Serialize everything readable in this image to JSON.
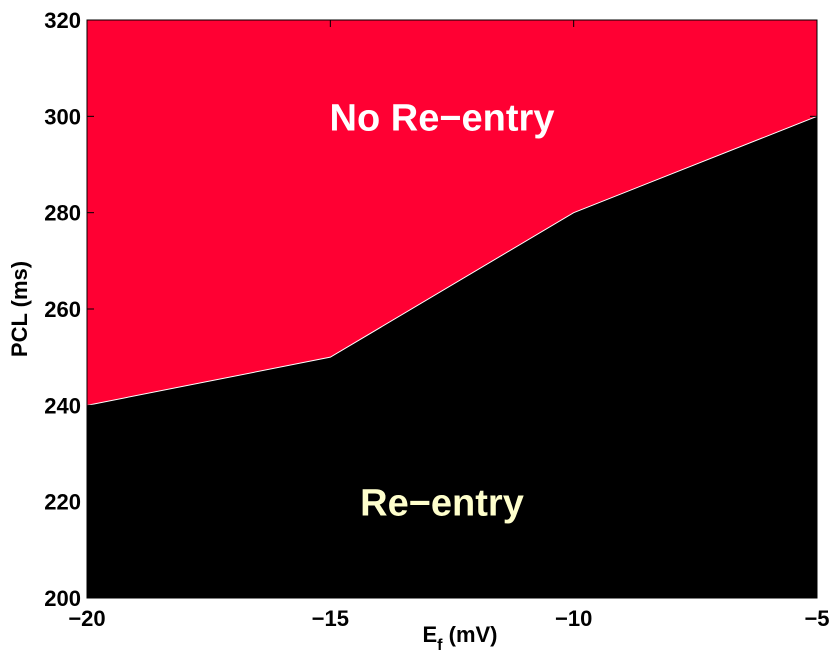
{
  "chart_data": {
    "type": "area",
    "title": "",
    "xlabel": "E",
    "xlabel_sub": "f",
    "xlabel_unit": " (mV)",
    "ylabel": "PCL (ms)",
    "xlim": [
      -20,
      -5
    ],
    "ylim": [
      200,
      320
    ],
    "xticks": [
      -20,
      -15,
      -10,
      -5
    ],
    "xtick_labels": [
      "−20",
      "−15",
      "−10",
      "−5"
    ],
    "yticks": [
      200,
      220,
      240,
      260,
      280,
      300,
      320
    ],
    "ytick_labels": [
      "200",
      "220",
      "240",
      "260",
      "280",
      "300",
      "320"
    ],
    "grid": false,
    "boundary": {
      "x": [
        -20,
        -15,
        -10,
        -5
      ],
      "y": [
        240,
        250,
        280,
        300
      ]
    },
    "regions": [
      {
        "name": "No Re−entry",
        "side": "above",
        "color": "#ff0033",
        "label_color": "#ffffff",
        "label_at": [
          -12.5,
          300
        ]
      },
      {
        "name": "Re−entry",
        "side": "below",
        "color": "#000000",
        "label_color": "#ffffcc",
        "label_at": [
          -12.5,
          220
        ]
      }
    ]
  }
}
